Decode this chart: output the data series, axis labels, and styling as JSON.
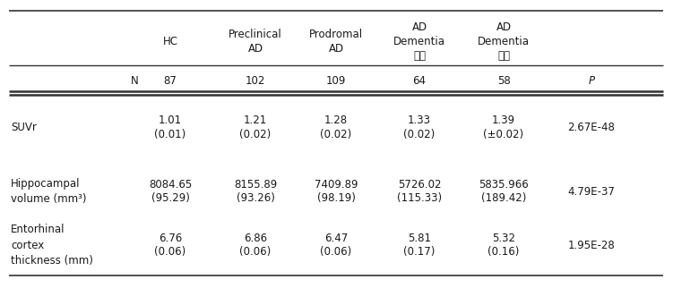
{
  "col_headers": [
    "HC",
    "Preclinical\nAD",
    "Prodromal\nAD",
    "AD\nDementia\n씻기",
    "AD\nDementia\n중기"
  ],
  "n_values": [
    "87",
    "102",
    "109",
    "64",
    "58"
  ],
  "rows": [
    {
      "label": "SUVr",
      "values": [
        "1.01\n(0.01)",
        "1.21\n(0.02)",
        "1.28\n(0.02)",
        "1.33\n(0.02)",
        "1.39\n(±0.02)"
      ],
      "p": "2.67E-48"
    },
    {
      "label": "Hippocampal\nvolume (mm³)",
      "values": [
        "8084.65\n(95.29)",
        "8155.89\n(93.26)",
        "7409.89\n(98.19)",
        "5726.02\n(115.33)",
        "5835.966\n(189.42)"
      ],
      "p": "4.79E-37"
    },
    {
      "label": "Entorhinal\ncortex\nthickness (mm)",
      "values": [
        "6.76\n(0.06)",
        "6.86\n(0.06)",
        "6.47\n(0.06)",
        "5.81\n(0.17)",
        "5.32\n(0.16)"
      ],
      "p": "1.95E-28"
    }
  ],
  "bg_color": "#ffffff",
  "text_color": "#1a1a1a",
  "line_color": "#333333",
  "font_size": 8.5
}
